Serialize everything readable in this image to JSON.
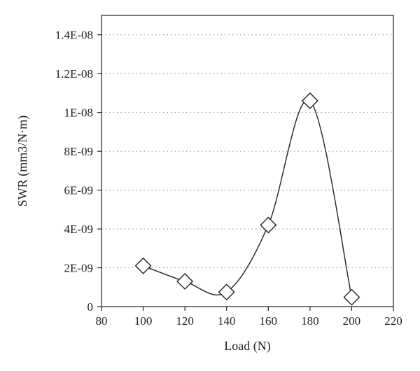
{
  "chart_data": {
    "type": "scatter",
    "xlabel": "Load (N)",
    "ylabel": "SWR (mm3/N·m)",
    "xlim": [
      80,
      220
    ],
    "ylim": [
      0,
      1.5e-08
    ],
    "x_ticks": [
      80,
      100,
      120,
      140,
      160,
      180,
      200,
      220
    ],
    "x_tick_labels": [
      "80",
      "100",
      "120",
      "140",
      "160",
      "180",
      "200",
      "220"
    ],
    "y_ticks": [
      0,
      2e-09,
      4e-09,
      6e-09,
      8e-09,
      1e-08,
      1.2e-08,
      1.4e-08
    ],
    "y_tick_labels": [
      "0",
      "2E-09",
      "4E-09",
      "6E-09",
      "8E-09",
      "1E-08",
      "1.2E-08",
      "1.4E-08"
    ],
    "grid": "horizontal dotted",
    "marker": "diamond",
    "line": "smooth",
    "series": [
      {
        "x": [
          100,
          120,
          140,
          160,
          180,
          200
        ],
        "y": [
          2.1e-09,
          1.3e-09,
          7.5e-10,
          4.2e-09,
          1.06e-08,
          4.8e-10
        ]
      }
    ],
    "colors": {
      "line": "#222222",
      "marker_fill": "#ffffff",
      "grid": "#888888"
    }
  }
}
